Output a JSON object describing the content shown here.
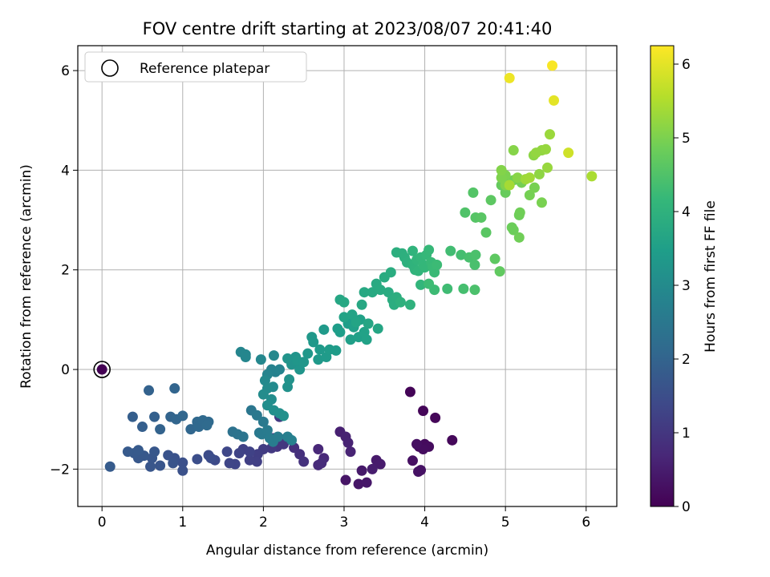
{
  "chart_data": {
    "type": "scatter",
    "title": "FOV centre drift starting at 2023/08/07 20:41:40",
    "xlabel": "Angular distance from reference (arcmin)",
    "ylabel": "Rotation from reference (arcmin)",
    "xlim": [
      -0.3,
      6.38
    ],
    "ylim": [
      -2.75,
      6.5
    ],
    "xticks": [
      0,
      1,
      2,
      3,
      4,
      5,
      6
    ],
    "yticks": [
      -2,
      0,
      2,
      4,
      6
    ],
    "grid": true,
    "legend": {
      "position": "top-left",
      "entries": [
        {
          "label": "Reference platepar",
          "marker": "open-circle"
        }
      ]
    },
    "reference_point": {
      "x": 0,
      "y": 0,
      "label": "Reference platepar"
    },
    "colorbar": {
      "label": "Hours from first FF file",
      "min": 0,
      "max": 6.25,
      "ticks": [
        0,
        1,
        2,
        3,
        4,
        5,
        6
      ],
      "colormap": "viridis"
    },
    "colormap_stops": [
      "#440154",
      "#482878",
      "#3e4989",
      "#31688e",
      "#26828e",
      "#1f9e89",
      "#35b779",
      "#6ece58",
      "#b5de2b",
      "#fde725"
    ],
    "points": [
      {
        "x": 3.82,
        "y": -0.45,
        "h": 0.05
      },
      {
        "x": 3.98,
        "y": -0.83,
        "h": 0.08
      },
      {
        "x": 4.13,
        "y": -0.97,
        "h": 0.1
      },
      {
        "x": 4.34,
        "y": -1.42,
        "h": 0.12
      },
      {
        "x": 3.93,
        "y": -1.55,
        "h": 0.15
      },
      {
        "x": 4.0,
        "y": -1.5,
        "h": 0.18
      },
      {
        "x": 4.05,
        "y": -1.55,
        "h": 0.2
      },
      {
        "x": 3.98,
        "y": -1.6,
        "h": 0.22
      },
      {
        "x": 3.9,
        "y": -1.5,
        "h": 0.25
      },
      {
        "x": 3.85,
        "y": -1.83,
        "h": 0.27
      },
      {
        "x": 3.92,
        "y": -2.05,
        "h": 0.3
      },
      {
        "x": 3.95,
        "y": -2.02,
        "h": 0.3
      },
      {
        "x": 3.02,
        "y": -2.22,
        "h": 0.35
      },
      {
        "x": 3.18,
        "y": -2.3,
        "h": 0.38
      },
      {
        "x": 3.28,
        "y": -2.27,
        "h": 0.4
      },
      {
        "x": 3.22,
        "y": -2.03,
        "h": 0.42
      },
      {
        "x": 3.4,
        "y": -1.82,
        "h": 0.45
      },
      {
        "x": 3.45,
        "y": -1.9,
        "h": 0.47
      },
      {
        "x": 3.35,
        "y": -2.0,
        "h": 0.5
      },
      {
        "x": 2.95,
        "y": -1.25,
        "h": 0.55
      },
      {
        "x": 3.02,
        "y": -1.35,
        "h": 0.58
      },
      {
        "x": 3.05,
        "y": -1.47,
        "h": 0.6
      },
      {
        "x": 3.08,
        "y": -1.65,
        "h": 0.62
      },
      {
        "x": 2.68,
        "y": -1.6,
        "h": 0.7
      },
      {
        "x": 2.75,
        "y": -1.78,
        "h": 0.72
      },
      {
        "x": 2.68,
        "y": -1.92,
        "h": 0.75
      },
      {
        "x": 2.72,
        "y": -1.88,
        "h": 0.77
      },
      {
        "x": 2.38,
        "y": -1.57,
        "h": 0.85
      },
      {
        "x": 2.45,
        "y": -1.7,
        "h": 0.87
      },
      {
        "x": 2.5,
        "y": -1.85,
        "h": 0.9
      },
      {
        "x": 2.22,
        "y": -1.4,
        "h": 0.95
      },
      {
        "x": 2.17,
        "y": -1.55,
        "h": 0.97
      },
      {
        "x": 2.25,
        "y": -1.5,
        "h": 1.0
      },
      {
        "x": 2.12,
        "y": -1.38,
        "h": 1.02
      },
      {
        "x": 2.2,
        "y": -0.95,
        "h": 1.05
      },
      {
        "x": 2.1,
        "y": -1.58,
        "h": 1.05
      },
      {
        "x": 2.0,
        "y": -1.6,
        "h": 1.12
      },
      {
        "x": 1.93,
        "y": -1.7,
        "h": 1.15
      },
      {
        "x": 1.92,
        "y": -1.85,
        "h": 1.17
      },
      {
        "x": 1.83,
        "y": -1.82,
        "h": 1.2
      },
      {
        "x": 1.75,
        "y": -1.6,
        "h": 1.23
      },
      {
        "x": 1.83,
        "y": -1.65,
        "h": 1.25
      },
      {
        "x": 1.7,
        "y": -1.68,
        "h": 1.28
      },
      {
        "x": 1.65,
        "y": -1.9,
        "h": 1.3
      },
      {
        "x": 1.58,
        "y": -1.88,
        "h": 1.32
      },
      {
        "x": 1.55,
        "y": -1.65,
        "h": 1.35
      },
      {
        "x": 1.4,
        "y": -1.82,
        "h": 1.42
      },
      {
        "x": 1.32,
        "y": -1.72,
        "h": 1.45
      },
      {
        "x": 1.35,
        "y": -1.78,
        "h": 1.47
      },
      {
        "x": 1.18,
        "y": -1.8,
        "h": 1.5
      },
      {
        "x": 1.0,
        "y": -1.87,
        "h": 1.55
      },
      {
        "x": 1.0,
        "y": -2.03,
        "h": 1.57
      },
      {
        "x": 0.9,
        "y": -1.78,
        "h": 1.6
      },
      {
        "x": 0.82,
        "y": -1.72,
        "h": 1.62
      },
      {
        "x": 0.88,
        "y": -1.88,
        "h": 1.63
      },
      {
        "x": 0.72,
        "y": -1.93,
        "h": 1.65
      },
      {
        "x": 0.6,
        "y": -1.95,
        "h": 1.67
      },
      {
        "x": 0.62,
        "y": -1.78,
        "h": 1.68
      },
      {
        "x": 0.65,
        "y": -1.65,
        "h": 1.7
      },
      {
        "x": 0.52,
        "y": -1.73,
        "h": 1.72
      },
      {
        "x": 0.45,
        "y": -1.78,
        "h": 1.73
      },
      {
        "x": 0.4,
        "y": -1.68,
        "h": 1.75
      },
      {
        "x": 0.32,
        "y": -1.65,
        "h": 1.77
      },
      {
        "x": 0.45,
        "y": -1.62,
        "h": 1.78
      },
      {
        "x": 0.1,
        "y": -1.95,
        "h": 1.8
      },
      {
        "x": 0.38,
        "y": -0.95,
        "h": 1.85
      },
      {
        "x": 0.5,
        "y": -1.15,
        "h": 1.88
      },
      {
        "x": 0.65,
        "y": -0.95,
        "h": 1.9
      },
      {
        "x": 0.58,
        "y": -0.42,
        "h": 1.95
      },
      {
        "x": 0.72,
        "y": -1.2,
        "h": 1.97
      },
      {
        "x": 0.85,
        "y": -0.95,
        "h": 2.0
      },
      {
        "x": 0.9,
        "y": -0.38,
        "h": 2.02
      },
      {
        "x": 0.92,
        "y": -1.0,
        "h": 2.03
      },
      {
        "x": 1.0,
        "y": -0.93,
        "h": 2.05
      },
      {
        "x": 1.1,
        "y": -1.2,
        "h": 2.07
      },
      {
        "x": 1.18,
        "y": -1.05,
        "h": 2.1
      },
      {
        "x": 1.2,
        "y": -1.15,
        "h": 2.12
      },
      {
        "x": 1.25,
        "y": -1.02,
        "h": 2.13
      },
      {
        "x": 1.32,
        "y": -1.05,
        "h": 2.15
      },
      {
        "x": 1.3,
        "y": -1.12,
        "h": 2.17
      },
      {
        "x": 1.62,
        "y": -1.25,
        "h": 2.35
      },
      {
        "x": 1.68,
        "y": -1.3,
        "h": 2.37
      },
      {
        "x": 1.75,
        "y": -1.35,
        "h": 2.4
      },
      {
        "x": 1.85,
        "y": -0.82,
        "h": 2.45
      },
      {
        "x": 1.92,
        "y": -0.92,
        "h": 2.5
      },
      {
        "x": 1.95,
        "y": -1.27,
        "h": 2.52
      },
      {
        "x": 2.0,
        "y": -1.05,
        "h": 2.55
      },
      {
        "x": 1.98,
        "y": -1.3,
        "h": 2.57
      },
      {
        "x": 2.05,
        "y": -1.22,
        "h": 2.6
      },
      {
        "x": 2.08,
        "y": -1.38,
        "h": 2.62
      },
      {
        "x": 2.12,
        "y": -1.45,
        "h": 2.63
      },
      {
        "x": 2.18,
        "y": -1.35,
        "h": 2.65
      },
      {
        "x": 2.3,
        "y": -1.35,
        "h": 2.7
      },
      {
        "x": 2.35,
        "y": -1.42,
        "h": 2.72
      },
      {
        "x": 2.15,
        "y": -0.05,
        "h": 2.75
      },
      {
        "x": 2.1,
        "y": 0.0,
        "h": 2.77
      },
      {
        "x": 2.2,
        "y": 0.0,
        "h": 2.8
      },
      {
        "x": 2.05,
        "y": -0.1,
        "h": 2.82
      },
      {
        "x": 1.72,
        "y": 0.35,
        "h": 2.85
      },
      {
        "x": 1.78,
        "y": 0.3,
        "h": 2.87
      },
      {
        "x": 1.78,
        "y": 0.25,
        "h": 2.88
      },
      {
        "x": 1.97,
        "y": 0.2,
        "h": 2.9
      },
      {
        "x": 2.13,
        "y": 0.28,
        "h": 2.92
      },
      {
        "x": 2.02,
        "y": -0.22,
        "h": 2.95
      },
      {
        "x": 2.12,
        "y": -0.35,
        "h": 2.97
      },
      {
        "x": 2.05,
        "y": -0.38,
        "h": 3.0
      },
      {
        "x": 2.0,
        "y": -0.5,
        "h": 3.02
      },
      {
        "x": 2.1,
        "y": -0.6,
        "h": 3.05
      },
      {
        "x": 2.05,
        "y": -0.72,
        "h": 3.07
      },
      {
        "x": 2.13,
        "y": -0.82,
        "h": 3.1
      },
      {
        "x": 2.2,
        "y": -0.88,
        "h": 3.12
      },
      {
        "x": 2.25,
        "y": -0.93,
        "h": 3.13
      },
      {
        "x": 2.3,
        "y": -0.35,
        "h": 3.15
      },
      {
        "x": 2.32,
        "y": -0.2,
        "h": 3.17
      },
      {
        "x": 2.35,
        "y": 0.1,
        "h": 3.2
      },
      {
        "x": 2.3,
        "y": 0.22,
        "h": 3.22
      },
      {
        "x": 2.4,
        "y": 0.25,
        "h": 3.23
      },
      {
        "x": 2.45,
        "y": 0.0,
        "h": 3.25
      },
      {
        "x": 2.42,
        "y": 0.18,
        "h": 3.27
      },
      {
        "x": 2.5,
        "y": 0.15,
        "h": 3.28
      },
      {
        "x": 2.55,
        "y": 0.32,
        "h": 3.3
      },
      {
        "x": 2.6,
        "y": 0.65,
        "h": 3.32
      },
      {
        "x": 2.62,
        "y": 0.55,
        "h": 3.33
      },
      {
        "x": 2.68,
        "y": 0.2,
        "h": 3.35
      },
      {
        "x": 2.7,
        "y": 0.4,
        "h": 3.37
      },
      {
        "x": 2.75,
        "y": 0.8,
        "h": 3.38
      },
      {
        "x": 2.78,
        "y": 0.25,
        "h": 3.4
      },
      {
        "x": 2.82,
        "y": 0.4,
        "h": 3.42
      },
      {
        "x": 2.9,
        "y": 0.38,
        "h": 3.43
      },
      {
        "x": 2.92,
        "y": 0.82,
        "h": 3.45
      },
      {
        "x": 2.95,
        "y": 0.75,
        "h": 3.47
      },
      {
        "x": 3.05,
        "y": 0.92,
        "h": 3.48
      },
      {
        "x": 3.08,
        "y": 0.6,
        "h": 3.5
      },
      {
        "x": 3.12,
        "y": 0.85,
        "h": 3.52
      },
      {
        "x": 3.18,
        "y": 0.65,
        "h": 3.53
      },
      {
        "x": 3.2,
        "y": 1.0,
        "h": 3.55
      },
      {
        "x": 3.25,
        "y": 0.75,
        "h": 3.57
      },
      {
        "x": 3.28,
        "y": 0.6,
        "h": 3.58
      },
      {
        "x": 3.0,
        "y": 1.05,
        "h": 3.6
      },
      {
        "x": 3.1,
        "y": 1.1,
        "h": 3.62
      },
      {
        "x": 3.15,
        "y": 0.95,
        "h": 3.63
      },
      {
        "x": 3.42,
        "y": 0.82,
        "h": 3.67
      },
      {
        "x": 3.3,
        "y": 0.92,
        "h": 3.68
      },
      {
        "x": 2.95,
        "y": 1.4,
        "h": 3.7
      },
      {
        "x": 3.0,
        "y": 1.35,
        "h": 3.72
      },
      {
        "x": 3.22,
        "y": 1.3,
        "h": 3.73
      },
      {
        "x": 3.25,
        "y": 1.55,
        "h": 3.75
      },
      {
        "x": 3.35,
        "y": 1.55,
        "h": 3.77
      },
      {
        "x": 3.4,
        "y": 1.72,
        "h": 3.78
      },
      {
        "x": 3.45,
        "y": 1.6,
        "h": 3.8
      },
      {
        "x": 3.5,
        "y": 1.85,
        "h": 3.82
      },
      {
        "x": 3.55,
        "y": 1.55,
        "h": 3.83
      },
      {
        "x": 3.58,
        "y": 1.95,
        "h": 3.85
      },
      {
        "x": 3.6,
        "y": 1.4,
        "h": 3.87
      },
      {
        "x": 3.62,
        "y": 1.3,
        "h": 3.88
      },
      {
        "x": 3.65,
        "y": 1.45,
        "h": 3.9
      },
      {
        "x": 3.65,
        "y": 2.35,
        "h": 3.92
      },
      {
        "x": 3.72,
        "y": 2.33,
        "h": 3.93
      },
      {
        "x": 3.75,
        "y": 2.25,
        "h": 3.95
      },
      {
        "x": 3.78,
        "y": 2.15,
        "h": 3.97
      },
      {
        "x": 3.7,
        "y": 1.35,
        "h": 3.98
      },
      {
        "x": 3.82,
        "y": 1.3,
        "h": 4.0
      },
      {
        "x": 3.85,
        "y": 2.1,
        "h": 4.02
      },
      {
        "x": 3.88,
        "y": 2.0,
        "h": 4.03
      },
      {
        "x": 3.85,
        "y": 2.38,
        "h": 4.05
      },
      {
        "x": 3.9,
        "y": 2.2,
        "h": 4.07
      },
      {
        "x": 3.92,
        "y": 1.98,
        "h": 4.08
      },
      {
        "x": 3.95,
        "y": 1.7,
        "h": 4.1
      },
      {
        "x": 3.95,
        "y": 2.25,
        "h": 4.12
      },
      {
        "x": 3.98,
        "y": 2.1,
        "h": 4.13
      },
      {
        "x": 4.0,
        "y": 2.05,
        "h": 4.15
      },
      {
        "x": 4.02,
        "y": 2.3,
        "h": 4.17
      },
      {
        "x": 4.05,
        "y": 2.4,
        "h": 4.18
      },
      {
        "x": 4.08,
        "y": 2.15,
        "h": 4.2
      },
      {
        "x": 4.1,
        "y": 2.05,
        "h": 4.22
      },
      {
        "x": 4.12,
        "y": 1.95,
        "h": 4.23
      },
      {
        "x": 4.15,
        "y": 2.1,
        "h": 4.25
      },
      {
        "x": 4.12,
        "y": 1.6,
        "h": 4.27
      },
      {
        "x": 4.05,
        "y": 1.72,
        "h": 4.28
      },
      {
        "x": 4.28,
        "y": 1.62,
        "h": 4.3
      },
      {
        "x": 4.32,
        "y": 2.38,
        "h": 4.32
      },
      {
        "x": 4.45,
        "y": 2.3,
        "h": 4.35
      },
      {
        "x": 4.48,
        "y": 1.62,
        "h": 4.37
      },
      {
        "x": 4.55,
        "y": 2.25,
        "h": 4.4
      },
      {
        "x": 4.62,
        "y": 2.1,
        "h": 4.42
      },
      {
        "x": 4.63,
        "y": 2.3,
        "h": 4.43
      },
      {
        "x": 4.62,
        "y": 1.6,
        "h": 4.45
      },
      {
        "x": 4.5,
        "y": 3.15,
        "h": 4.5
      },
      {
        "x": 4.6,
        "y": 3.55,
        "h": 4.55
      },
      {
        "x": 4.63,
        "y": 3.05,
        "h": 4.57
      },
      {
        "x": 4.7,
        "y": 3.05,
        "h": 4.6
      },
      {
        "x": 4.76,
        "y": 2.75,
        "h": 4.62
      },
      {
        "x": 4.82,
        "y": 3.4,
        "h": 4.65
      },
      {
        "x": 4.87,
        "y": 2.22,
        "h": 4.67
      },
      {
        "x": 4.93,
        "y": 1.97,
        "h": 4.7
      },
      {
        "x": 4.95,
        "y": 3.7,
        "h": 4.75
      },
      {
        "x": 5.0,
        "y": 3.55,
        "h": 4.77
      },
      {
        "x": 5.05,
        "y": 3.75,
        "h": 4.8
      },
      {
        "x": 5.08,
        "y": 2.85,
        "h": 4.82
      },
      {
        "x": 5.1,
        "y": 2.8,
        "h": 4.83
      },
      {
        "x": 5.17,
        "y": 3.1,
        "h": 4.85
      },
      {
        "x": 5.18,
        "y": 3.15,
        "h": 4.87
      },
      {
        "x": 5.17,
        "y": 2.65,
        "h": 4.88
      },
      {
        "x": 5.1,
        "y": 3.8,
        "h": 4.9
      },
      {
        "x": 5.2,
        "y": 3.75,
        "h": 4.92
      },
      {
        "x": 5.3,
        "y": 3.5,
        "h": 4.93
      },
      {
        "x": 5.36,
        "y": 3.65,
        "h": 4.95
      },
      {
        "x": 5.45,
        "y": 3.35,
        "h": 4.97
      },
      {
        "x": 5.0,
        "y": 3.9,
        "h": 5.0
      },
      {
        "x": 4.95,
        "y": 3.85,
        "h": 5.02
      },
      {
        "x": 5.0,
        "y": 3.7,
        "h": 5.05
      },
      {
        "x": 4.95,
        "y": 4.0,
        "h": 5.07
      },
      {
        "x": 5.1,
        "y": 4.4,
        "h": 5.1
      },
      {
        "x": 5.15,
        "y": 3.85,
        "h": 5.12
      },
      {
        "x": 5.35,
        "y": 4.3,
        "h": 5.15
      },
      {
        "x": 5.42,
        "y": 3.92,
        "h": 5.17
      },
      {
        "x": 5.45,
        "y": 4.4,
        "h": 5.2
      },
      {
        "x": 5.38,
        "y": 4.35,
        "h": 5.22
      },
      {
        "x": 5.5,
        "y": 4.42,
        "h": 5.25
      },
      {
        "x": 5.52,
        "y": 4.05,
        "h": 5.27
      },
      {
        "x": 5.55,
        "y": 4.72,
        "h": 5.3
      },
      {
        "x": 5.25,
        "y": 3.82,
        "h": 5.32
      },
      {
        "x": 5.3,
        "y": 3.85,
        "h": 5.35
      },
      {
        "x": 5.05,
        "y": 3.7,
        "h": 5.4
      },
      {
        "x": 6.07,
        "y": 3.88,
        "h": 5.45
      },
      {
        "x": 5.78,
        "y": 4.35,
        "h": 5.8
      },
      {
        "x": 5.6,
        "y": 5.4,
        "h": 6.0
      },
      {
        "x": 5.05,
        "y": 5.85,
        "h": 6.1
      },
      {
        "x": 5.58,
        "y": 6.1,
        "h": 6.2
      }
    ]
  }
}
